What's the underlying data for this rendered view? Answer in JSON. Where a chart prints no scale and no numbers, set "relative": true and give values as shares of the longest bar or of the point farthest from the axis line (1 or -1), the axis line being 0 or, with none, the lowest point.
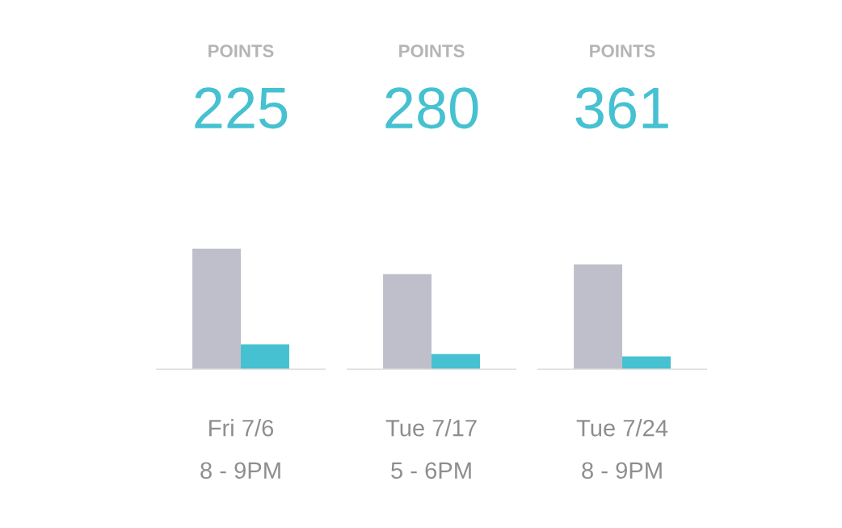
{
  "chart_data": {
    "type": "bar",
    "relative": true,
    "categories": [
      "Fri 7/6\n8 - 9PM",
      "Tue 7/17\n5 - 6PM",
      "Tue 7/24\n8 - 9PM"
    ],
    "series": [
      {
        "color": "#bebfca",
        "values": [
          1,
          0.79,
          0.87
        ]
      },
      {
        "color": "#45c1d1",
        "values": [
          0.21,
          0.13,
          0.11
        ]
      }
    ],
    "annotations": [
      "POINTS",
      "225",
      "POINTS",
      "280",
      "POINTS",
      "361"
    ],
    "grid": false,
    "legend": false
  }
}
